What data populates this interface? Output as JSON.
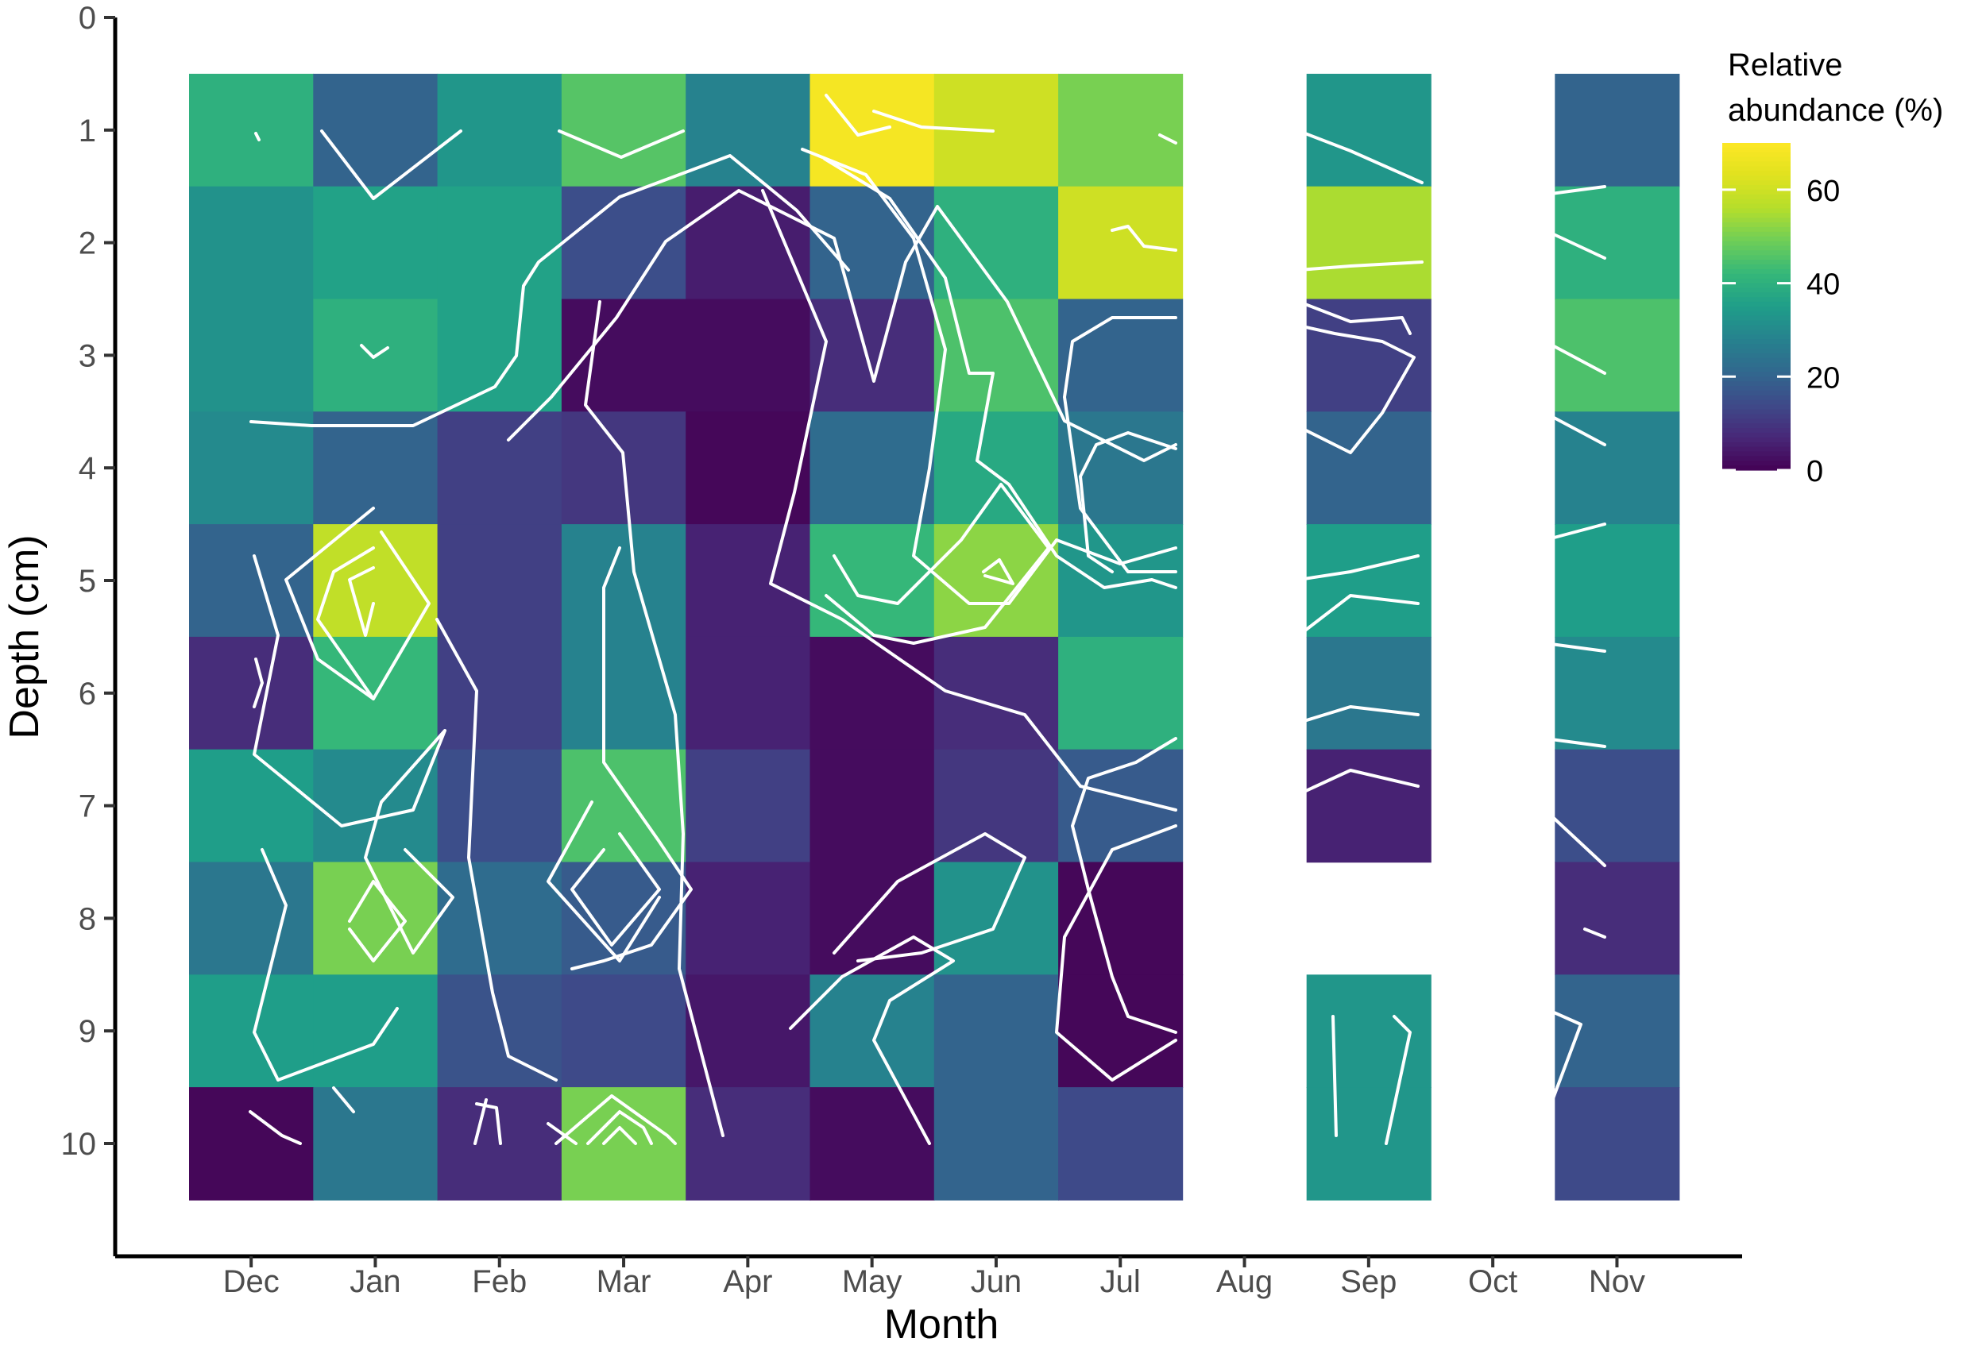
{
  "chart_data": {
    "type": "heatmap",
    "title": "",
    "xlabel": "Month",
    "ylabel": "Depth (cm)",
    "x_categories": [
      "Dec",
      "Jan",
      "Feb",
      "Mar",
      "Apr",
      "May",
      "Jun",
      "Jul",
      "Aug",
      "Sep",
      "Oct",
      "Nov"
    ],
    "y_ticks": [
      "0",
      "1",
      "2",
      "3",
      "4",
      "5",
      "6",
      "7",
      "8",
      "9",
      "10"
    ],
    "ylim": [
      0,
      11
    ],
    "y_reversed": true,
    "depths": [
      1,
      2,
      3,
      4,
      5,
      6,
      7,
      8,
      9,
      10
    ],
    "values_note": "rows = depths 1..10 cm, columns = months Dec..Nov; null = no sample",
    "values": [
      [
        40,
        20,
        33,
        46,
        28,
        68,
        60,
        50,
        null,
        33,
        null,
        20
      ],
      [
        32,
        36,
        36,
        15,
        5,
        20,
        40,
        60,
        null,
        55,
        null,
        40
      ],
      [
        32,
        40,
        36,
        2,
        2,
        8,
        45,
        20,
        null,
        12,
        null,
        45
      ],
      [
        30,
        20,
        12,
        10,
        1,
        22,
        38,
        25,
        null,
        20,
        null,
        28
      ],
      [
        20,
        58,
        12,
        28,
        6,
        42,
        52,
        33,
        null,
        35,
        null,
        35
      ],
      [
        8,
        42,
        12,
        28,
        6,
        2,
        8,
        40,
        null,
        25,
        null,
        30
      ],
      [
        35,
        30,
        15,
        45,
        12,
        2,
        10,
        18,
        null,
        6,
        null,
        15
      ],
      [
        25,
        50,
        22,
        18,
        6,
        2,
        32,
        1,
        null,
        null,
        null,
        8
      ],
      [
        35,
        35,
        16,
        14,
        4,
        28,
        20,
        1,
        null,
        33,
        null,
        20
      ],
      [
        1,
        25,
        8,
        50,
        8,
        2,
        20,
        14,
        null,
        33,
        null,
        14
      ]
    ],
    "contour_overlay": true,
    "contour_color": "#ffffff",
    "colorscale": "viridis",
    "legend": {
      "title_line1": "Relative",
      "title_line2": "abundance (%)",
      "range": [
        0,
        70
      ],
      "tick_values": [
        0,
        20,
        40,
        60
      ],
      "tick_labels": [
        "0",
        "20",
        "40",
        "60"
      ],
      "placement": "right"
    },
    "grid": false
  }
}
